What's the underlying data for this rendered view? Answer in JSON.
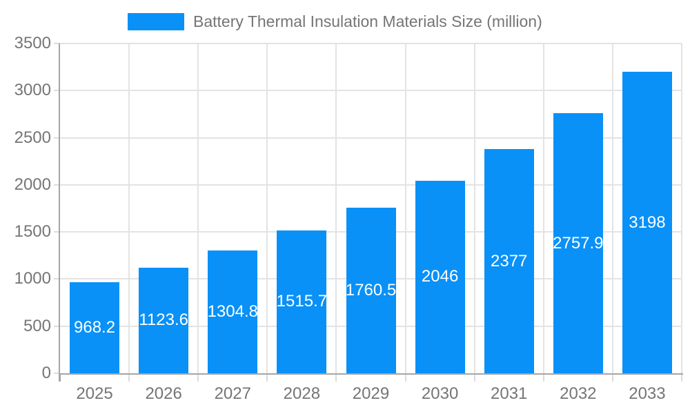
{
  "chart_data": {
    "type": "bar",
    "title": "Battery Thermal Insulation Materials Size (million)",
    "categories": [
      "2025",
      "2026",
      "2027",
      "2028",
      "2029",
      "2030",
      "2031",
      "2032",
      "2033"
    ],
    "values": [
      968.2,
      1123.6,
      1304.8,
      1515.7,
      1760.5,
      2046,
      2377,
      2757.9,
      3198
    ],
    "value_labels": [
      "968.2",
      "1123.6",
      "1304.8",
      "1515.7",
      "1760.5",
      "2046",
      "2377",
      "2757.9",
      "3198"
    ],
    "series": [
      {
        "name": "Battery Thermal Insulation Materials Size (million)",
        "values": [
          968.2,
          1123.6,
          1304.8,
          1515.7,
          1760.5,
          2046,
          2377,
          2757.9,
          3198
        ]
      }
    ],
    "xlabel": "",
    "ylabel": "",
    "ylim": [
      0,
      3500
    ],
    "yticks": [
      0,
      500,
      1000,
      1500,
      2000,
      2500,
      3000,
      3500
    ],
    "grid": true,
    "legend_position": "top",
    "colors": {
      "bar": "#0991f7",
      "grid": "#e3e3e3",
      "tick": "#dcdcdc",
      "axis": "#a5a5a5",
      "text": "#757575",
      "bar_label": "#ffffff",
      "background": "#ffffff"
    }
  }
}
